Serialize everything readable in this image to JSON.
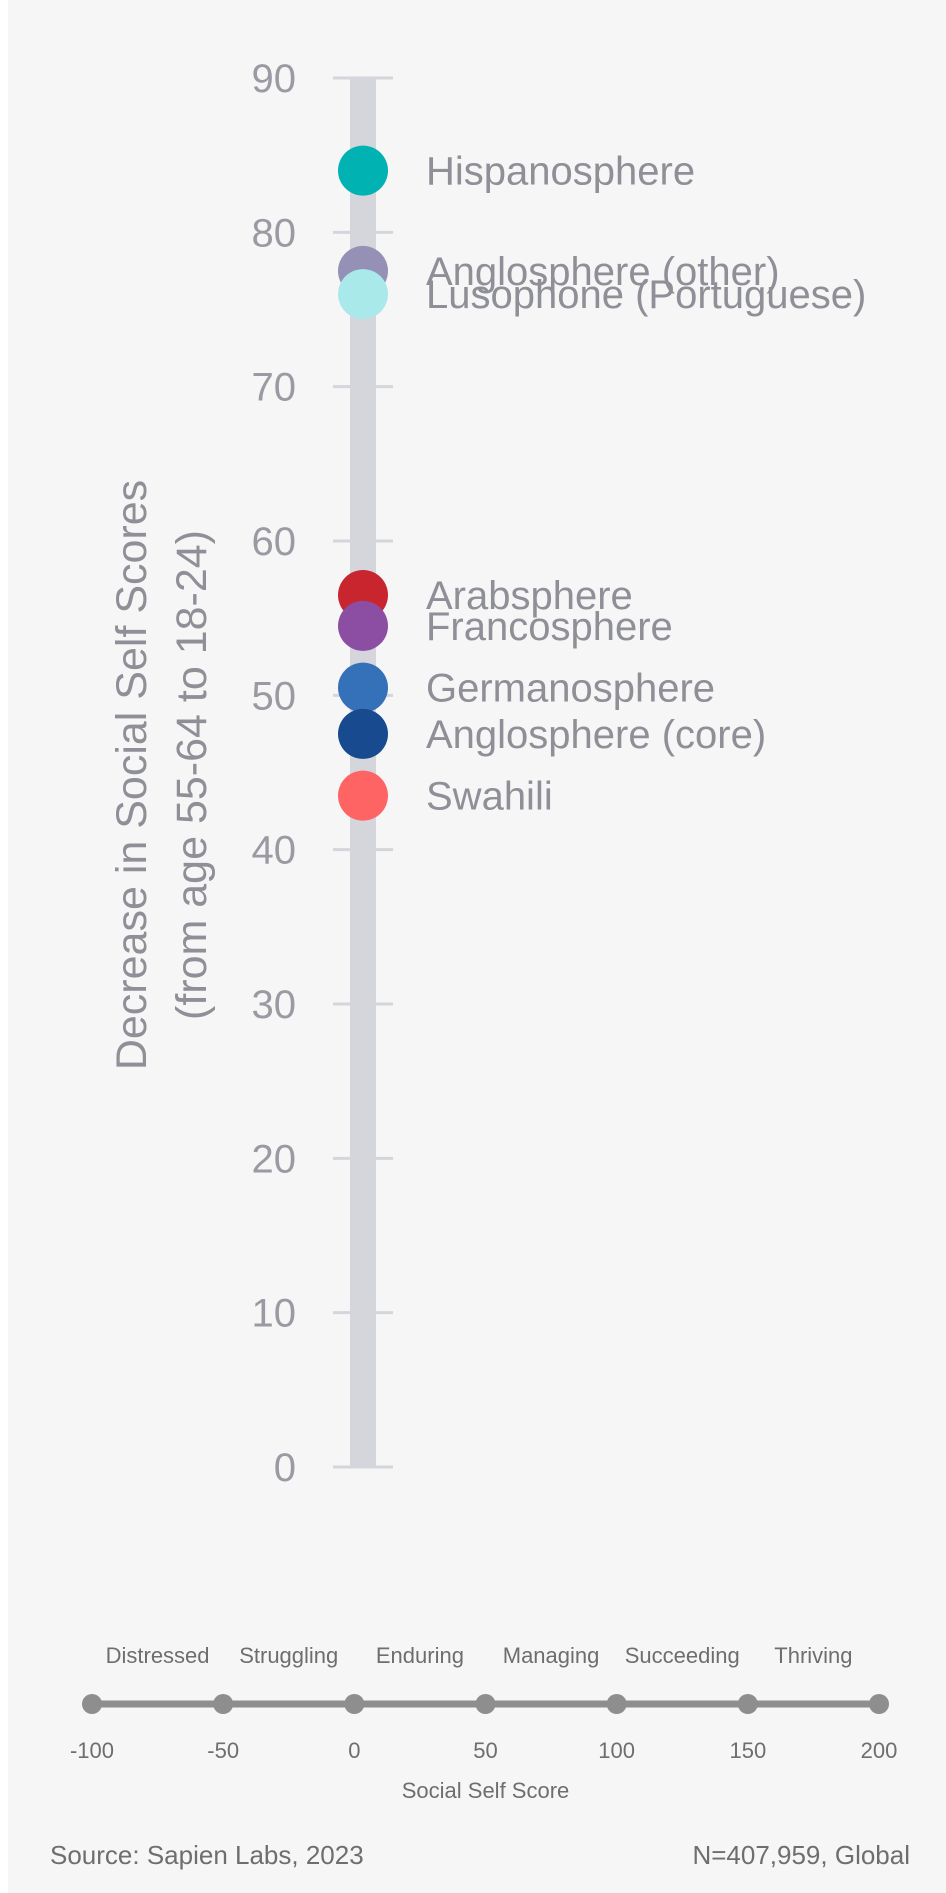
{
  "chart_data": {
    "type": "scatter",
    "ylabel_lines": [
      "Decrease in Social Self Scores",
      "(from age 55-64 to 18-24)"
    ],
    "ylim": [
      0,
      90
    ],
    "yticks": [
      0,
      10,
      20,
      30,
      40,
      50,
      60,
      70,
      80,
      90
    ],
    "grid": false,
    "points": [
      {
        "label": "Hispanosphere",
        "y": 84,
        "color": "#00b2b2"
      },
      {
        "label": "Anglosphere (other)",
        "y": 77.5,
        "color": "#9590b6"
      },
      {
        "label": "Lusophone (Portuguese)",
        "y": 76,
        "color": "#a9e9ea"
      },
      {
        "label": "Arabsphere",
        "y": 56.5,
        "color": "#c8252f"
      },
      {
        "label": "Francosphere",
        "y": 54.5,
        "color": "#8c4ea2"
      },
      {
        "label": "Germanosphere",
        "y": 50.5,
        "color": "#3471b8"
      },
      {
        "label": "Anglosphere (core)",
        "y": 47.5,
        "color": "#174a8e"
      },
      {
        "label": "Swahili",
        "y": 43.5,
        "color": "#ff6464"
      }
    ]
  },
  "scale": {
    "title": "Social Self Score",
    "categories": [
      "Distressed",
      "Struggling",
      "Enduring",
      "Managing",
      "Succeeding",
      "Thriving"
    ],
    "ticks": [
      "-100",
      "-50",
      "0",
      "50",
      "100",
      "150",
      "200"
    ]
  },
  "footer": {
    "source": "Source: Sapien Labs, 2023",
    "sample": "N=407,959, Global"
  }
}
